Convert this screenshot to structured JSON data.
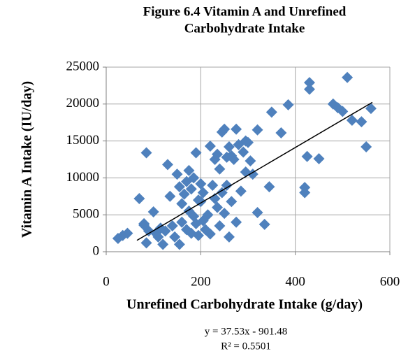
{
  "chart_data": {
    "type": "scatter",
    "title": [
      "Figure 6.4 Vitamin A and Unrefined",
      "Carbohydrate Intake"
    ],
    "x_label": "Unrefined Carbohydrate Intake (g/day)",
    "y_label": "Vitamin A Intake (IU/day)",
    "annotations": [
      "y = 37.53x - 901.48",
      "R² = 0.5501"
    ],
    "trendline": {
      "slope": 37.53,
      "intercept": -901.48,
      "xrange": [
        65,
        563
      ],
      "color": "#000000"
    },
    "color": "#4f81bd",
    "grid": true,
    "xlim": [
      0,
      600
    ],
    "xticks": [
      0,
      200,
      400,
      600
    ],
    "ylim": [
      0,
      25000
    ],
    "yticks": [
      0,
      5000,
      10000,
      15000,
      20000,
      25000
    ],
    "x": [
      25,
      35,
      45,
      70,
      80,
      80,
      85,
      85,
      90,
      100,
      105,
      110,
      115,
      120,
      125,
      130,
      135,
      140,
      145,
      150,
      155,
      155,
      160,
      160,
      165,
      170,
      170,
      175,
      175,
      180,
      180,
      185,
      185,
      190,
      190,
      195,
      195,
      200,
      200,
      205,
      205,
      210,
      215,
      220,
      220,
      225,
      230,
      230,
      235,
      235,
      240,
      240,
      245,
      245,
      250,
      250,
      255,
      255,
      260,
      260,
      265,
      265,
      270,
      275,
      275,
      280,
      285,
      290,
      295,
      295,
      300,
      305,
      310,
      320,
      320,
      335,
      345,
      350,
      370,
      385,
      420,
      420,
      425,
      430,
      430,
      450,
      480,
      490,
      500,
      510,
      520,
      540,
      550,
      560
    ],
    "values": [
      1800,
      2200,
      2500,
      7200,
      3600,
      3800,
      1200,
      13400,
      2800,
      5400,
      2500,
      2000,
      3200,
      1000,
      2800,
      11800,
      7500,
      3500,
      2000,
      10500,
      8800,
      1000,
      4000,
      6500,
      7800,
      9500,
      3000,
      11000,
      5500,
      8500,
      2500,
      10000,
      4800,
      13400,
      3800,
      7000,
      2200,
      6800,
      9200,
      8000,
      4200,
      3000,
      5000,
      14300,
      2400,
      9000,
      12500,
      7200,
      13200,
      6000,
      11200,
      3500,
      16200,
      8000,
      16600,
      5200,
      12800,
      9000,
      14200,
      2000,
      13000,
      6800,
      12500,
      16600,
      4000,
      14500,
      8200,
      13500,
      15000,
      10800,
      14800,
      12300,
      10500,
      16500,
      5300,
      3700,
      8800,
      18900,
      16100,
      19900,
      8000,
      8700,
      12900,
      22900,
      22000,
      12600,
      20000,
      19500,
      19000,
      23600,
      17800,
      17600,
      14200,
      19400
    ]
  }
}
